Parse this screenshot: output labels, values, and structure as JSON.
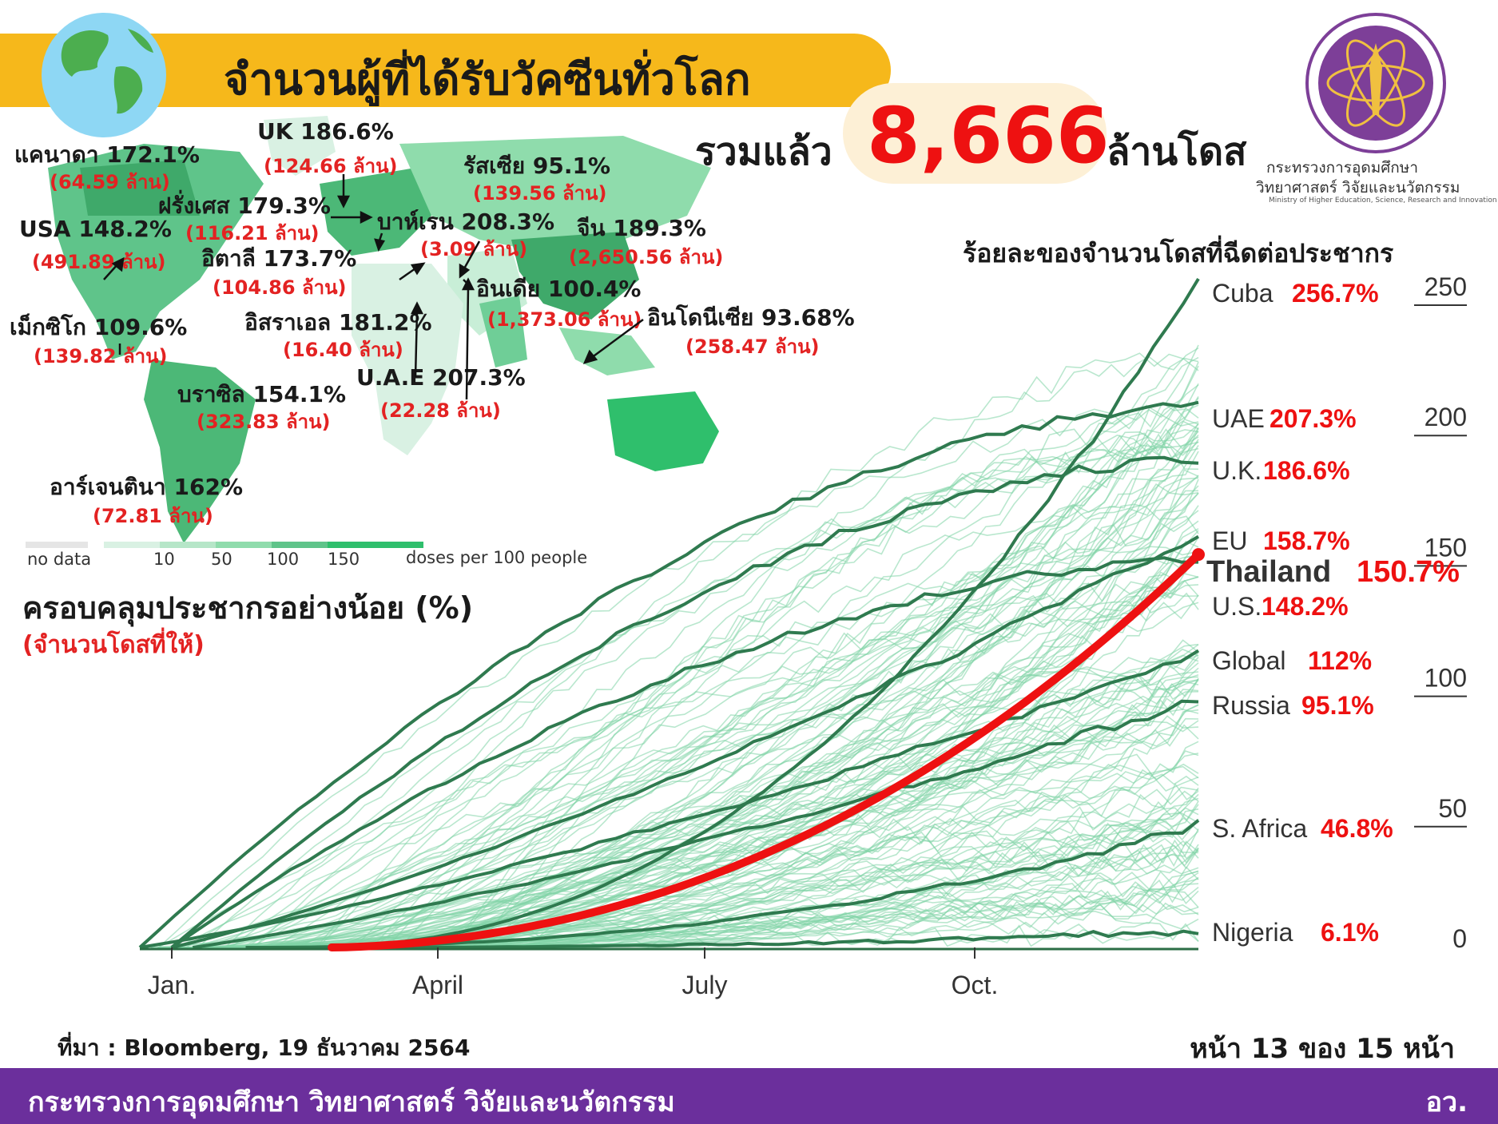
{
  "header": {
    "title": "จำนวนผู้ที่ได้รับวัคซีนทั่วโลก"
  },
  "total": {
    "prefix": "รวมแล้ว",
    "value": "8,666",
    "suffix": "ล้านโดส"
  },
  "logo": {
    "line1": "กระทรวงการอุดมศึกษา",
    "line2": "วิทยาศาสตร์ วิจัยและนวัตกรรม",
    "english": "Ministry of Higher Education, Science, Research and Innovation"
  },
  "map": {
    "labels": [
      {
        "name": "แคนาดา 172.1%",
        "sub": "(64.59 ล้าน)"
      },
      {
        "name": "UK 186.6%",
        "sub": "(124.66 ล้าน)"
      },
      {
        "name": "รัสเซีย 95.1%",
        "sub": "(139.56 ล้าน)"
      },
      {
        "name": "ฝรั่งเศส 179.3%",
        "sub": "(116.21 ล้าน)"
      },
      {
        "name": "บาห์เรน 208.3%",
        "sub": "(3.09 ล้าน)"
      },
      {
        "name": "จีน 189.3%",
        "sub": "(2,650.56 ล้าน)"
      },
      {
        "name": "USA 148.2%",
        "sub": "(491.89 ล้าน)"
      },
      {
        "name": "อิตาลี 173.7%",
        "sub": "(104.86 ล้าน)"
      },
      {
        "name": "อินเดีย 100.4%",
        "sub": "(1,373.06 ล้าน)"
      },
      {
        "name": "อินโดนีเซีย 93.68%",
        "sub": "(258.47 ล้าน)"
      },
      {
        "name": "เม็กซิโก 109.6%",
        "sub": "(139.82 ล้าน)"
      },
      {
        "name": "อิสราเอล 181.2%",
        "sub": "(16.40 ล้าน)"
      },
      {
        "name": "U.A.E 207.3%",
        "sub": "(22.28 ล้าน)"
      },
      {
        "name": "บราซิล 154.1%",
        "sub": "(323.83 ล้าน)"
      },
      {
        "name": "อาร์เจนตินา 162%",
        "sub": "(72.81 ล้าน)"
      }
    ],
    "legend": {
      "no_data": "no data",
      "ticks": [
        "10",
        "50",
        "100",
        "150"
      ],
      "unit": "doses per 100 people"
    }
  },
  "coverage": {
    "title": "ครอบคลุมประชากรอย่างน้อย (%)",
    "subtitle": "(จำนวนโดสที่ให้)"
  },
  "chart_data": {
    "type": "line",
    "title": "ร้อยละของจำนวนโดสที่ฉีดต่อประชากร",
    "x_ticks": [
      "Jan.",
      "April",
      "July",
      "Oct."
    ],
    "y_ticks": [
      0,
      50,
      100,
      150,
      200,
      250
    ],
    "ylim": [
      0,
      260
    ],
    "series": [
      {
        "name": "Cuba",
        "value_label": "256.7%",
        "final": 256.7,
        "highlight": false
      },
      {
        "name": "UAE",
        "value_label": "207.3%",
        "final": 207.3,
        "highlight": false
      },
      {
        "name": "U.K.",
        "value_label": "186.6%",
        "final": 186.6,
        "highlight": false
      },
      {
        "name": "EU",
        "value_label": "158.7%",
        "final": 158.7,
        "highlight": false
      },
      {
        "name": "Thailand",
        "value_label": "150.7%",
        "final": 150.7,
        "highlight": true
      },
      {
        "name": "U.S.",
        "value_label": "148.2%",
        "final": 148.2,
        "highlight": false
      },
      {
        "name": "Global",
        "value_label": "112%",
        "final": 112,
        "highlight": false
      },
      {
        "name": "Russia",
        "value_label": "95.1%",
        "final": 95.1,
        "highlight": false
      },
      {
        "name": "S. Africa",
        "value_label": "46.8%",
        "final": 46.8,
        "highlight": false
      },
      {
        "name": "Nigeria",
        "value_label": "6.1%",
        "final": 6.1,
        "highlight": false
      }
    ]
  },
  "source": "ที่มา : Bloomberg, 19 ธันวาคม 2564",
  "page": "หน้า 13 ของ 15 หน้า",
  "footer": {
    "left": "กระทรวงการอุดมศึกษา วิทยาศาสตร์ วิจัยและนวัตกรรม",
    "right": "อว."
  },
  "colors": {
    "title_bar": "#f6b81b",
    "accent_red": "#ee1111",
    "footer_purple": "#6b2f9c",
    "line_green": "#2f7a4f",
    "faint_green": "#7fd3a5"
  }
}
